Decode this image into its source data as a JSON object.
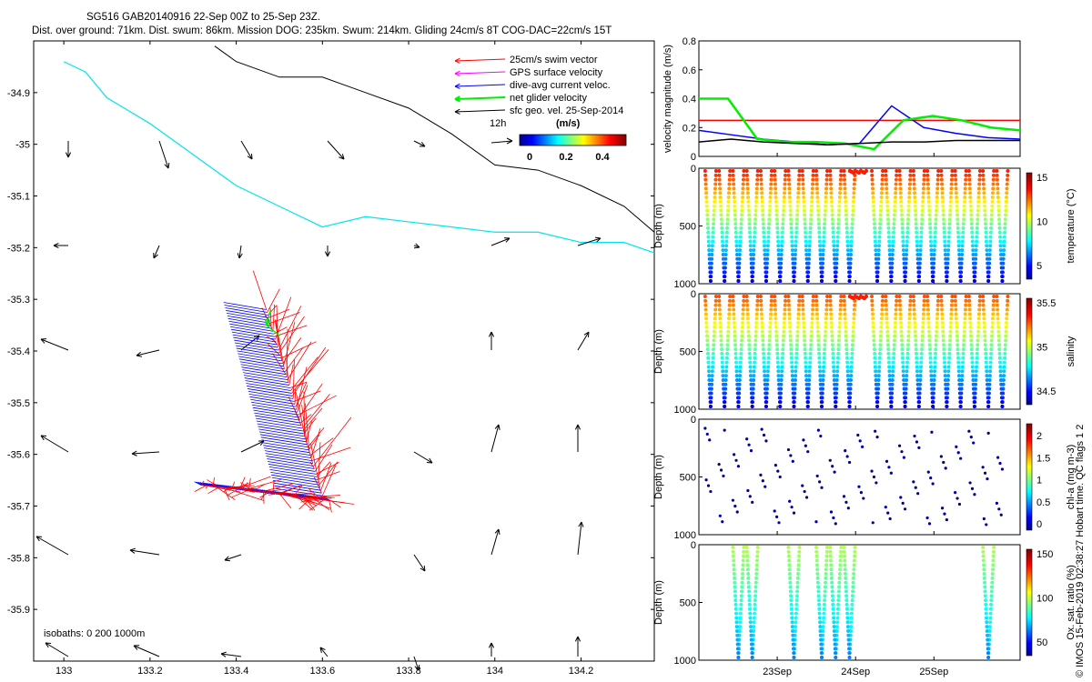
{
  "header": {
    "line1": "SG516 GAB20140916 22-Sep 00Z to 25-Sep 23Z.",
    "line2": "Dist. over ground: 71km. Dist. swum: 86km. Mission DOG: 235km. Swum: 214km. Gliding 24cm/s 8T COG-DAC=22cm/s 15T"
  },
  "legend": {
    "items": [
      {
        "label": "25cm/s swim vector",
        "color": "#ff0000"
      },
      {
        "label": "GPS surface velocity",
        "color": "#ff00ff"
      },
      {
        "label": "dive-avg current veloc.",
        "color": "#0000ff"
      },
      {
        "label": "net glider velocity",
        "color": "#00ee00"
      },
      {
        "label": "sfc geo. vel. 25-Sep-2014",
        "color": "#000000"
      }
    ],
    "scale_label": "12h",
    "colorbar_title": "(m/s)",
    "colorbar_ticks": [
      "0",
      "0.2",
      "0.4"
    ]
  },
  "isobaths_label": "isobaths: 0   200  1000m",
  "side_label": "© IMOS 15-Feb-2019 02:38:27 Hobart time. QC flags 1  2",
  "chart_data": [
    {
      "type": "scatter",
      "title": "map",
      "xlabel": "",
      "ylabel": "",
      "xlim": [
        132.93,
        134.37
      ],
      "ylim": [
        -36.0,
        -34.8
      ],
      "x_ticks": [
        "133",
        "133.2",
        "133.4",
        "133.6",
        "133.8",
        "134",
        "134.2"
      ],
      "y_ticks": [
        "-34.9",
        "-35",
        "-35.1",
        "-35.2",
        "-35.3",
        "-35.4",
        "-35.5",
        "-35.6",
        "-35.7",
        "-35.8",
        "-35.9"
      ],
      "isobath_200": [
        [
          133.0,
          -34.84
        ],
        [
          133.05,
          -34.86
        ],
        [
          133.1,
          -34.91
        ],
        [
          133.2,
          -34.96
        ],
        [
          133.3,
          -35.02
        ],
        [
          133.4,
          -35.08
        ],
        [
          133.5,
          -35.12
        ],
        [
          133.6,
          -35.16
        ],
        [
          133.7,
          -35.14
        ],
        [
          133.8,
          -35.15
        ],
        [
          133.9,
          -35.16
        ],
        [
          134.0,
          -35.17
        ],
        [
          134.1,
          -35.17
        ],
        [
          134.2,
          -35.19
        ],
        [
          134.3,
          -35.19
        ],
        [
          134.37,
          -35.21
        ]
      ],
      "isobath_1000": [
        [
          133.35,
          -34.81
        ],
        [
          133.4,
          -34.84
        ],
        [
          133.5,
          -34.87
        ],
        [
          133.6,
          -34.87
        ],
        [
          133.7,
          -34.9
        ],
        [
          133.8,
          -34.93
        ],
        [
          133.9,
          -34.98
        ],
        [
          134.0,
          -35.04
        ],
        [
          134.1,
          -35.05
        ],
        [
          134.2,
          -35.08
        ],
        [
          134.3,
          -35.12
        ],
        [
          134.37,
          -35.17
        ]
      ]
    },
    {
      "type": "line",
      "title": "",
      "ylabel": "velocity magnitude (m/s)",
      "ylim": [
        0,
        0.8
      ],
      "y_ticks": [
        "0",
        "0.2",
        "0.4",
        "0.6",
        "0.8"
      ],
      "series": [
        {
          "color": "#ff0000",
          "values": [
            0.25,
            0.25
          ]
        },
        {
          "color": "#0000ff",
          "values": [
            0.18,
            0.15,
            0.12,
            0.1,
            0.08,
            0.09,
            0.35,
            0.2,
            0.16,
            0.13,
            0.12
          ]
        },
        {
          "color": "#00ee00",
          "values": [
            0.4,
            0.4,
            0.12,
            0.1,
            0.1,
            0.09,
            0.05,
            0.25,
            0.28,
            0.25,
            0.2,
            0.18
          ]
        },
        {
          "color": "#000000",
          "values": [
            0.1,
            0.12,
            0.1,
            0.09,
            0.08,
            0.09,
            0.1,
            0.1,
            0.11,
            0.11,
            0.11
          ]
        }
      ]
    },
    {
      "type": "heatmap",
      "ylabel": "Depth (m)",
      "colorbar_label": "temperature (°C)",
      "colorbar_ticks": [
        "5",
        "10",
        "15"
      ],
      "ylim": [
        1000,
        0
      ],
      "y_ticks": [
        "0",
        "500",
        "1000"
      ]
    },
    {
      "type": "heatmap",
      "ylabel": "Depth (m)",
      "colorbar_label": "salinity",
      "colorbar_ticks": [
        "34.5",
        "35",
        "35.5"
      ],
      "ylim": [
        1000,
        0
      ],
      "y_ticks": [
        "0",
        "500",
        "1000"
      ]
    },
    {
      "type": "heatmap",
      "ylabel": "Depth (m)",
      "colorbar_label": "chl-a (mg m-3)",
      "colorbar_ticks": [
        "0",
        "0.5",
        "1",
        "1.5",
        "2"
      ],
      "ylim": [
        1000,
        0
      ],
      "y_ticks": [
        "0",
        "500",
        "1000"
      ]
    },
    {
      "type": "heatmap",
      "ylabel": "Depth (m)",
      "colorbar_label": "Ox. sat. ratio (%)",
      "colorbar_ticks": [
        "50",
        "100",
        "150"
      ],
      "ylim": [
        1000,
        0
      ],
      "y_ticks": [
        "0",
        "500",
        "1000"
      ],
      "x_ticks": [
        "23Sep",
        "24Sep",
        "25Sep"
      ]
    }
  ]
}
